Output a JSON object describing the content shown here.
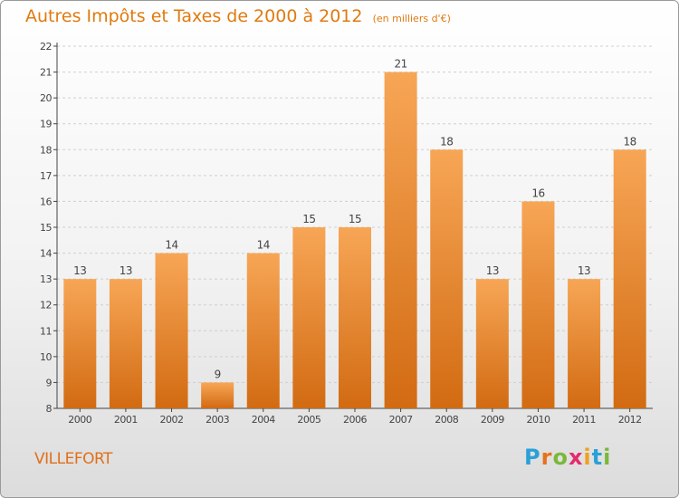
{
  "header": {
    "title": "Autres Impôts et Taxes de 2000 à 2012",
    "subtitle": "(en milliers d'€)"
  },
  "commune": "VILLEFORT",
  "logo": {
    "text": "Proxiti",
    "colors": [
      "#2aa0d8",
      "#e8711a",
      "#7ab83a",
      "#e32b6e",
      "#f0a020",
      "#2aa0d8",
      "#7ab83a"
    ]
  },
  "colors": {
    "bar_top": "#f7a656",
    "bar_bottom": "#d26b12",
    "text": "#e07a10",
    "axis": "#444444",
    "grid": "#cfcfcf"
  },
  "chart_data": {
    "type": "bar",
    "categories": [
      "2000",
      "2001",
      "2002",
      "2003",
      "2004",
      "2005",
      "2006",
      "2007",
      "2008",
      "2009",
      "2010",
      "2011",
      "2012"
    ],
    "values": [
      13,
      13,
      14,
      9,
      14,
      15,
      15,
      21,
      18,
      13,
      16,
      13,
      18
    ],
    "ylim": [
      8,
      22
    ],
    "yticks": [
      8,
      9,
      10,
      11,
      12,
      13,
      14,
      15,
      16,
      17,
      18,
      19,
      20,
      21,
      22
    ],
    "grid": "horizontal dashed",
    "legend": "none"
  }
}
